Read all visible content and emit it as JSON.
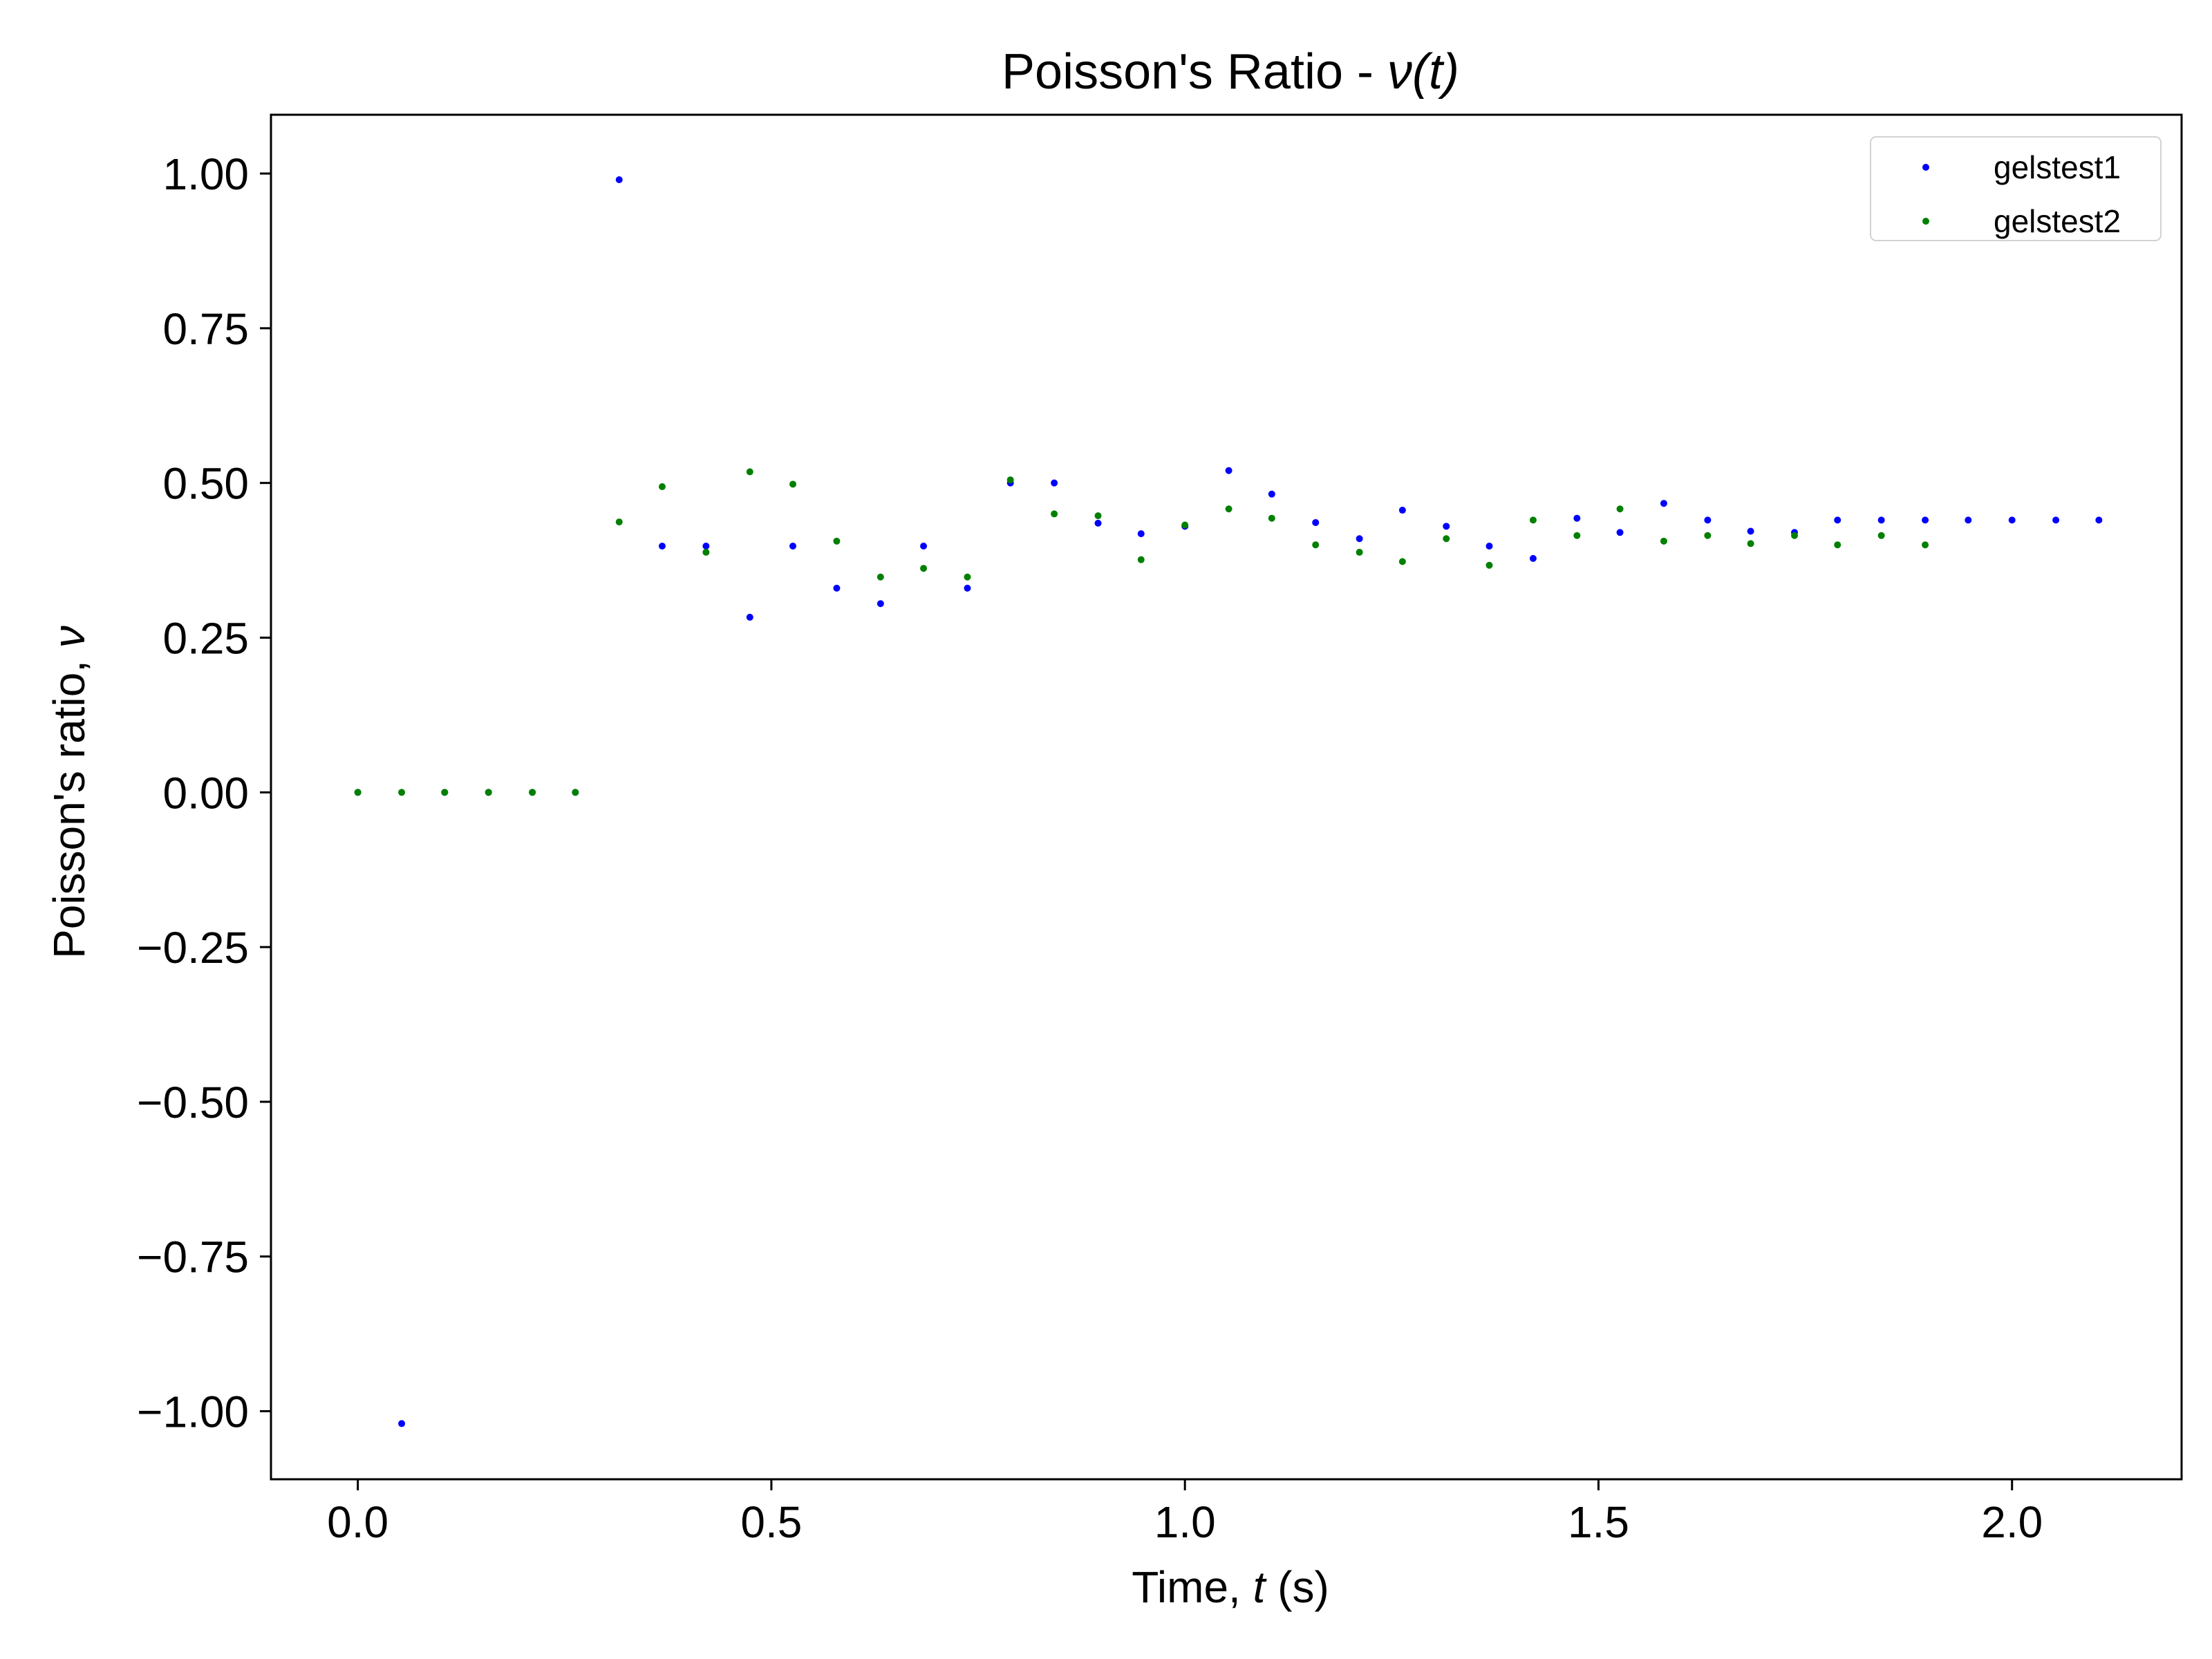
{
  "chart_data": {
    "type": "scatter",
    "title": "Poisson's Ratio - ",
    "title_math": "ν(t)",
    "xlabel": "Time, ",
    "xlabel_math": "t",
    "xlabel_unit": " (s)",
    "ylabel": "Poisson's ratio, ",
    "ylabel_math": "ν",
    "xlim": [
      -0.105,
      2.205
    ],
    "ylim": [
      -1.11,
      1.095
    ],
    "xticks": [
      0.0,
      0.5,
      1.0,
      1.5,
      2.0
    ],
    "xtick_labels": [
      "0.0",
      "0.5",
      "1.0",
      "1.5",
      "2.0"
    ],
    "yticks": [
      1.0,
      0.75,
      0.5,
      0.25,
      0.0,
      -0.25,
      -0.5,
      -0.75,
      -1.0
    ],
    "ytick_labels": [
      "1.00",
      "0.75",
      "0.50",
      "0.25",
      "0.00",
      "−0.25",
      "−0.50",
      "−0.75",
      "−1.00"
    ],
    "grid": false,
    "legend_position": "top-right",
    "series": [
      {
        "name": "gelstest1",
        "color": "#0000ff",
        "x": [
          0.0,
          0.053,
          0.105,
          0.158,
          0.211,
          0.263,
          0.316,
          0.368,
          0.421,
          0.474,
          0.526,
          0.579,
          0.632,
          0.684,
          0.737,
          0.789,
          0.842,
          0.895,
          0.947,
          1.0,
          1.053,
          1.105,
          1.158,
          1.211,
          1.263,
          1.316,
          1.368,
          1.421,
          1.474,
          1.526,
          1.579,
          1.632,
          1.684,
          1.737,
          1.789,
          1.842,
          1.895,
          1.947,
          2.0,
          2.053,
          2.105
        ],
        "y": [
          0.0,
          -1.02,
          0.0,
          0.0,
          0.0,
          0.0,
          0.99,
          0.398,
          0.398,
          0.283,
          0.398,
          0.33,
          0.305,
          0.398,
          0.33,
          0.5,
          0.5,
          0.435,
          0.418,
          0.43,
          0.52,
          0.482,
          0.436,
          0.41,
          0.456,
          0.43,
          0.398,
          0.378,
          0.443,
          0.42,
          0.467,
          0.44,
          0.422,
          0.42,
          0.44,
          0.44,
          0.44,
          0.44,
          0.44,
          0.44,
          0.44
        ]
      },
      {
        "name": "gelstest2",
        "color": "#008000",
        "x": [
          0.0,
          0.053,
          0.105,
          0.158,
          0.211,
          0.263,
          0.316,
          0.368,
          0.421,
          0.474,
          0.526,
          0.579,
          0.632,
          0.684,
          0.737,
          0.789,
          0.842,
          0.895,
          0.947,
          1.0,
          1.053,
          1.105,
          1.158,
          1.211,
          1.263,
          1.316,
          1.368,
          1.421,
          1.474,
          1.526,
          1.579,
          1.632,
          1.684,
          1.737,
          1.789,
          1.842,
          1.895
        ],
        "y": [
          0.0,
          0.0,
          0.0,
          0.0,
          0.0,
          0.0,
          0.437,
          0.494,
          0.388,
          0.518,
          0.498,
          0.406,
          0.348,
          0.362,
          0.348,
          0.505,
          0.45,
          0.447,
          0.376,
          0.432,
          0.458,
          0.443,
          0.4,
          0.388,
          0.373,
          0.41,
          0.367,
          0.44,
          0.415,
          0.458,
          0.406,
          0.415,
          0.402,
          0.415,
          0.4,
          0.415,
          0.4
        ]
      }
    ]
  }
}
